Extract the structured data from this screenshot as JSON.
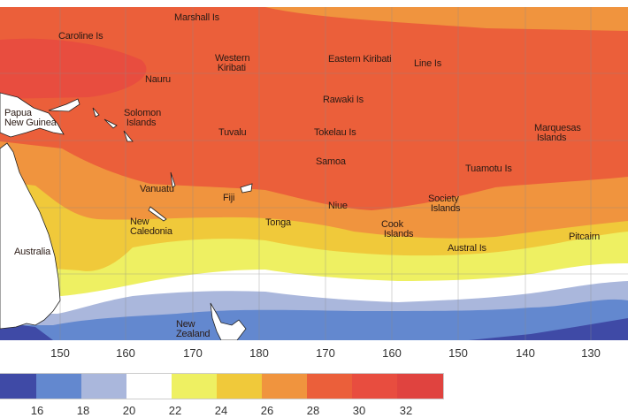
{
  "colors": {
    "c14_16": "#3f4aa6",
    "c16_18": "#6388cf",
    "c18_20": "#aab7dc",
    "c20_22": "#ffffff",
    "c22_24": "#eef062",
    "c24_26": "#f0c93a",
    "c26_28": "#f0943e",
    "c28_30": "#eb5f3a",
    "c30_32": "#e84d3f",
    "c32_34": "#e0433f",
    "land": "#ffffff"
  },
  "labels": {
    "marshall": "Marshall Is",
    "caroline": "Caroline Is",
    "western_kiribati": "Western\n Kiribati",
    "eastern_kiribati": "Eastern Kiribati",
    "line": "Line Is",
    "nauru": "Nauru",
    "rawaki": "Rawaki Is",
    "png": "Papua\nNew Guinea",
    "solomon": "Solomon\n Islands",
    "tuvalu": "Tuvalu",
    "tokelau": "Tokelau Is",
    "marquesas": "Marquesas\n Islands",
    "samoa": "Samoa",
    "tuamotu": "Tuamotu Is",
    "vanuatu": "Vanuatu",
    "fiji": "Fiji",
    "society": "Society\n Islands",
    "niue": "Niue",
    "new_caledonia": "New\nCaledonia",
    "tonga": "Tonga",
    "cook": "Cook\n Islands",
    "pitcairn": "Pitcairn",
    "australia": "Australia",
    "austral": "Austral Is",
    "new_zealand": "New\nZealand"
  },
  "longitude_ticks": [
    "150",
    "160",
    "170",
    "180",
    "170",
    "160",
    "150",
    "140",
    "130"
  ],
  "legend_ticks": [
    "16",
    "18",
    "20",
    "22",
    "24",
    "26",
    "28",
    "30",
    "32"
  ]
}
